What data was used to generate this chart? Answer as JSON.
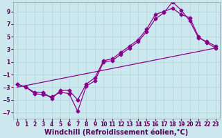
{
  "title": "",
  "xlabel": "Windchill (Refroidissement éolien,°C)",
  "ylabel": "",
  "bg_color": "#cce8ee",
  "line_color": "#880088",
  "grid_color": "#aad4dd",
  "xlim": [
    -0.5,
    23.5
  ],
  "ylim": [
    -8,
    10.5
  ],
  "xticks": [
    0,
    1,
    2,
    3,
    4,
    5,
    6,
    7,
    8,
    9,
    10,
    11,
    12,
    13,
    14,
    15,
    16,
    17,
    18,
    19,
    20,
    21,
    22,
    23
  ],
  "yticks": [
    -7,
    -5,
    -3,
    -1,
    1,
    3,
    5,
    7,
    9
  ],
  "line1_x": [
    0,
    1,
    2,
    3,
    4,
    5,
    6,
    7,
    8,
    9,
    10,
    11,
    12,
    13,
    14,
    15,
    16,
    17,
    18,
    19,
    20,
    21,
    22,
    23
  ],
  "line1_y": [
    -2.5,
    -3.0,
    -3.8,
    -3.8,
    -4.8,
    -3.5,
    -3.5,
    -5.0,
    -2.5,
    -1.5,
    1.2,
    1.5,
    2.5,
    3.5,
    4.5,
    6.2,
    8.5,
    9.0,
    9.5,
    8.5,
    8.0,
    5.0,
    4.0,
    3.2
  ],
  "line2_x": [
    0,
    1,
    2,
    3,
    4,
    5,
    6,
    7,
    8,
    9,
    10,
    11,
    12,
    13,
    14,
    15,
    16,
    17,
    18,
    19,
    20,
    21,
    22,
    23
  ],
  "line2_y": [
    -2.5,
    -3.0,
    -4.0,
    -4.2,
    -4.5,
    -3.8,
    -4.0,
    -6.8,
    -2.8,
    -2.0,
    1.0,
    1.2,
    2.2,
    3.2,
    4.2,
    5.8,
    7.8,
    8.8,
    10.5,
    9.2,
    7.5,
    4.8,
    4.2,
    3.5
  ],
  "line3_x": [
    0,
    23
  ],
  "line3_y": [
    -3.0,
    3.2
  ],
  "marker": "D",
  "markersize": 2.5,
  "linewidth": 0.9,
  "xlabel_fontsize": 7,
  "tick_fontsize": 5.5
}
